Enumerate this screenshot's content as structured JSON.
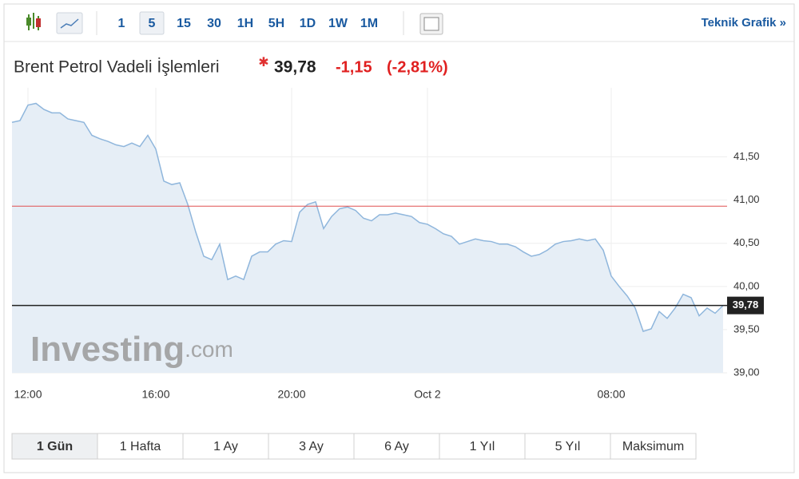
{
  "toolbar": {
    "intervals": [
      "1",
      "5",
      "15",
      "30",
      "1H",
      "5H",
      "1D",
      "1W",
      "1M"
    ],
    "active": 1,
    "link": "Teknik Grafik »"
  },
  "header": {
    "title": "Brent Petrol Vadeli İşlemleri",
    "price": "39,78",
    "change": "-1,15",
    "change_pct": "(-2,81%)"
  },
  "chart_data": {
    "type": "line",
    "categories": [
      null,
      null,
      "12:00",
      null,
      null,
      null,
      null,
      null,
      null,
      null,
      null,
      null,
      null,
      null,
      null,
      null,
      null,
      null,
      "16:00",
      null,
      null,
      null,
      null,
      null,
      null,
      null,
      null,
      null,
      null,
      null,
      null,
      null,
      null,
      null,
      null,
      "20:00",
      null,
      null,
      null,
      null,
      null,
      null,
      null,
      null,
      null,
      null,
      null,
      null,
      null,
      null,
      null,
      null,
      "Oct 2",
      null,
      null,
      null,
      null,
      null,
      null,
      null,
      null,
      null,
      null,
      null,
      null,
      null,
      null,
      null,
      null,
      null,
      null,
      null,
      null,
      null,
      null,
      "08:00",
      null,
      null,
      null,
      null,
      null,
      null,
      null,
      null,
      null,
      null,
      null,
      null,
      null,
      null
    ],
    "values": [
      41.9,
      41.92,
      42.1,
      42.12,
      42.05,
      42.01,
      42.01,
      41.94,
      41.92,
      41.9,
      41.75,
      41.71,
      41.68,
      41.64,
      41.62,
      41.66,
      41.62,
      41.75,
      41.59,
      41.22,
      41.18,
      41.2,
      40.95,
      40.63,
      40.35,
      40.31,
      40.49,
      40.08,
      40.12,
      40.08,
      40.35,
      40.4,
      40.4,
      40.49,
      40.53,
      40.52,
      40.86,
      40.95,
      40.98,
      40.67,
      40.81,
      40.9,
      40.92,
      40.88,
      40.79,
      40.76,
      40.83,
      40.83,
      40.85,
      40.83,
      40.81,
      40.74,
      40.72,
      40.67,
      40.61,
      40.58,
      40.49,
      40.52,
      40.55,
      40.53,
      40.52,
      40.49,
      40.49,
      40.46,
      40.4,
      40.35,
      40.37,
      40.42,
      40.49,
      40.52,
      40.53,
      40.55,
      40.53,
      40.55,
      40.42,
      40.12,
      40.0,
      39.89,
      39.75,
      39.48,
      39.51,
      39.71,
      39.63,
      39.75,
      39.91,
      39.87,
      39.66,
      39.75,
      39.69,
      39.78
    ],
    "color": "#8fb6dc",
    "fill": "#e6eef6",
    "ylim": [
      39,
      42.3
    ],
    "yticks": [
      {
        "value": 39,
        "label": "39,00"
      },
      {
        "value": 39.5,
        "label": "39,50"
      },
      {
        "value": 40,
        "label": "40,00"
      },
      {
        "value": 40.5,
        "label": "40,50"
      },
      {
        "value": 41,
        "label": "41,00"
      },
      {
        "value": 41.5,
        "label": "41,50"
      }
    ],
    "grid": true,
    "reference_lines": [
      {
        "value": 40.93,
        "color": "#e05050"
      },
      {
        "value": 39.78,
        "label": "39,78",
        "color": "#222222"
      }
    ],
    "watermark": "Investing",
    "watermark_suffix": ".com"
  },
  "ranges": {
    "buttons": [
      "1 Gün",
      "1 Hafta",
      "1 Ay",
      "3 Ay",
      "6 Ay",
      "1 Yıl",
      "5 Yıl",
      "Maksimum"
    ],
    "active": 0
  }
}
